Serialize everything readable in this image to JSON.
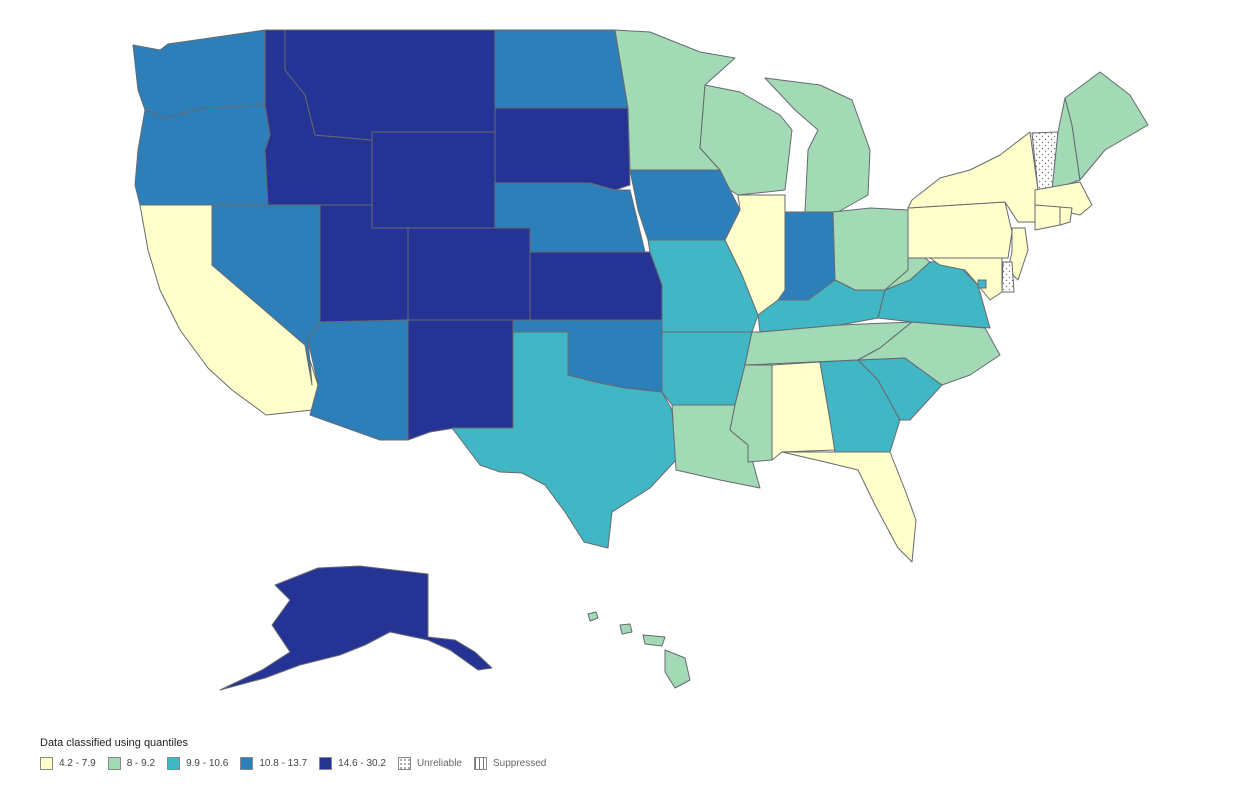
{
  "legend": {
    "title": "Data classified using quantiles",
    "classes": [
      {
        "label": "4.2 - 7.9",
        "color": "#ffffcc"
      },
      {
        "label": "8 - 9.2",
        "color": "#a1dab4"
      },
      {
        "label": "9.9 - 10.6",
        "color": "#41b6c4"
      },
      {
        "label": "10.8 - 13.7",
        "color": "#2c7fb8"
      },
      {
        "label": "14.6 - 30.2",
        "color": "#253494"
      }
    ],
    "unreliable_label": "Unreliable",
    "suppressed_label": "Suppressed"
  },
  "states": [
    {
      "name": "Washington",
      "class": 3
    },
    {
      "name": "Oregon",
      "class": 3
    },
    {
      "name": "California",
      "class": 0
    },
    {
      "name": "Nevada",
      "class": 3
    },
    {
      "name": "Idaho",
      "class": 4
    },
    {
      "name": "Montana",
      "class": 4
    },
    {
      "name": "Wyoming",
      "class": 4
    },
    {
      "name": "Utah",
      "class": 4
    },
    {
      "name": "Arizona",
      "class": 3
    },
    {
      "name": "Colorado",
      "class": 4
    },
    {
      "name": "New Mexico",
      "class": 4
    },
    {
      "name": "North Dakota",
      "class": 3
    },
    {
      "name": "South Dakota",
      "class": 4
    },
    {
      "name": "Nebraska",
      "class": 3
    },
    {
      "name": "Kansas",
      "class": 4
    },
    {
      "name": "Oklahoma",
      "class": 3
    },
    {
      "name": "Texas",
      "class": 2
    },
    {
      "name": "Minnesota",
      "class": 1
    },
    {
      "name": "Iowa",
      "class": 3
    },
    {
      "name": "Missouri",
      "class": 2
    },
    {
      "name": "Arkansas",
      "class": 2
    },
    {
      "name": "Louisiana",
      "class": 1
    },
    {
      "name": "Wisconsin",
      "class": 1
    },
    {
      "name": "Illinois",
      "class": 0
    },
    {
      "name": "Michigan",
      "class": 1
    },
    {
      "name": "Indiana",
      "class": 3
    },
    {
      "name": "Ohio",
      "class": 1
    },
    {
      "name": "Kentucky",
      "class": 2
    },
    {
      "name": "Tennessee",
      "class": 1
    },
    {
      "name": "Mississippi",
      "class": 1
    },
    {
      "name": "Alabama",
      "class": 0
    },
    {
      "name": "Georgia",
      "class": 2
    },
    {
      "name": "Florida",
      "class": 0
    },
    {
      "name": "South Carolina",
      "class": 2
    },
    {
      "name": "North Carolina",
      "class": 1
    },
    {
      "name": "Virginia",
      "class": 2
    },
    {
      "name": "West Virginia",
      "class": 1
    },
    {
      "name": "Pennsylvania",
      "class": 0
    },
    {
      "name": "New York",
      "class": 0
    },
    {
      "name": "Vermont",
      "class": "unreliable"
    },
    {
      "name": "New Hampshire",
      "class": 1
    },
    {
      "name": "Maine",
      "class": 1
    },
    {
      "name": "Massachusetts",
      "class": 0
    },
    {
      "name": "Connecticut",
      "class": 0
    },
    {
      "name": "Rhode Island",
      "class": 0
    },
    {
      "name": "New Jersey",
      "class": 0
    },
    {
      "name": "Delaware",
      "class": "unreliable"
    },
    {
      "name": "Maryland",
      "class": 0
    },
    {
      "name": "District of Columbia",
      "class": 2
    },
    {
      "name": "Alaska",
      "class": 4
    },
    {
      "name": "Hawaii",
      "class": 1
    }
  ]
}
